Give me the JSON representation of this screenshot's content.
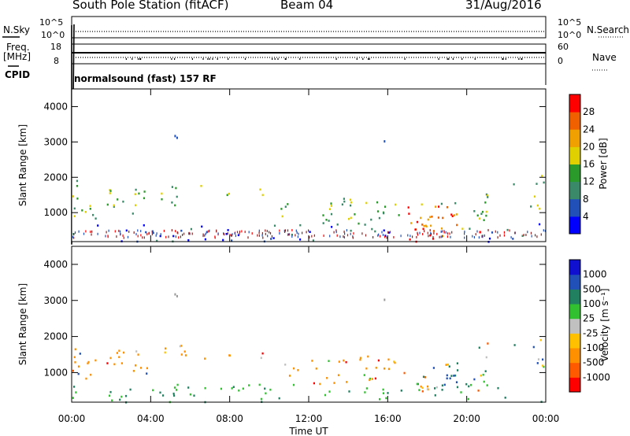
{
  "header": {
    "station": "South Pole Station (fitACF)",
    "beam": "Beam 04",
    "date": "31/Aug/2016"
  },
  "noise_panel": {
    "left_label": "N.Sky",
    "right_label": "N.Search",
    "left_ticks": [
      "10^5",
      "10^0"
    ],
    "right_ticks": [
      "10^5",
      "10^0"
    ]
  },
  "freq_panel": {
    "left_label_1": "Freq.",
    "left_label_2": "[MHz]",
    "right_label": "Nave",
    "left_ticks": [
      "18",
      "8"
    ],
    "right_ticks": [
      "60",
      "0"
    ]
  },
  "cpid": {
    "label": "CPID",
    "program": "normalsound (fast) 157 RF"
  },
  "colors": {
    "power": [
      "#0000ff",
      "#2050b8",
      "#3a8a6a",
      "#2a9a2a",
      "#e0d000",
      "#f0a000",
      "#f06000",
      "#ff0000"
    ],
    "velocity": [
      "#ff0000",
      "#ff5a00",
      "#ff9000",
      "#ffc000",
      "#c0c0c0",
      "#30c030",
      "#208060",
      "#2050b8",
      "#1010d0"
    ]
  },
  "chart_data": [
    {
      "type": "heatmap",
      "quantity": "Power",
      "ylabel": "Slant Range [km]",
      "ylim": [
        180,
        4500
      ],
      "yticks": [
        "1000",
        "2000",
        "3000",
        "4000"
      ],
      "colorbar_label": "Power [dB]",
      "colorbar_ticks": [
        "4",
        "8",
        "12",
        "16",
        "20",
        "24",
        "28"
      ],
      "colorbar_range": [
        0,
        32
      ]
    },
    {
      "type": "heatmap",
      "quantity": "Velocity",
      "ylabel": "Slant Range [km]",
      "ylim": [
        180,
        4500
      ],
      "yticks": [
        "1000",
        "2000",
        "3000",
        "4000"
      ],
      "colorbar_label": "Velocity [m s⁻¹]",
      "colorbar_ticks": [
        "1000",
        "500",
        "100",
        "25",
        "-25",
        "-100",
        "-500",
        "-1000"
      ],
      "xlabel": "Time UT",
      "xticks": [
        "00:00",
        "04:00",
        "08:00",
        "12:00",
        "16:00",
        "20:00",
        "00:00"
      ]
    }
  ]
}
